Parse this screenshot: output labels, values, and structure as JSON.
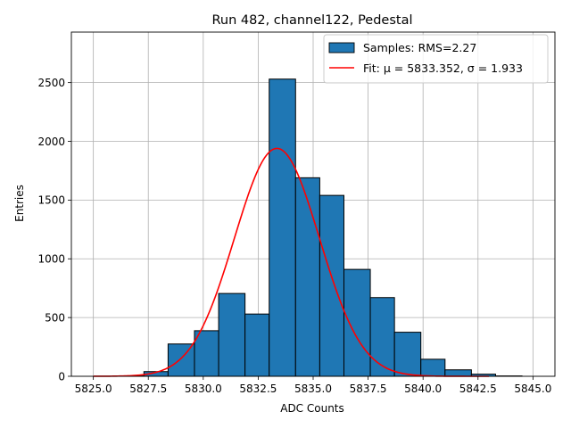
{
  "chart_data": {
    "type": "bar",
    "title": "Run 482, channel122, Pedestal",
    "xlabel": "ADC Counts",
    "ylabel": "Entries",
    "xlim": [
      5824.0,
      5846.0
    ],
    "ylim": [
      0,
      2930
    ],
    "grid": true,
    "legend_position": "top-right",
    "bar_color": "#1f77b4",
    "bar_edge_color": "#000000",
    "fit_color": "#ff0000",
    "x_ticks": [
      5825.0,
      5827.5,
      5830.0,
      5832.5,
      5835.0,
      5837.5,
      5840.0,
      5842.5,
      5845.0
    ],
    "x_tick_labels": [
      "5825.0",
      "5827.5",
      "5830.0",
      "5832.5",
      "5835.0",
      "5837.5",
      "5840.0",
      "5842.5",
      "5845.0"
    ],
    "y_ticks": [
      0,
      500,
      1000,
      1500,
      2000,
      2500
    ],
    "y_tick_labels": [
      "0",
      "500",
      "1000",
      "1500",
      "2000",
      "2500"
    ],
    "bins": [
      {
        "left": 5825.0,
        "right": 5826.1,
        "count": 0
      },
      {
        "left": 5826.1,
        "right": 5827.3,
        "count": 3
      },
      {
        "left": 5827.3,
        "right": 5828.4,
        "count": 40
      },
      {
        "left": 5828.4,
        "right": 5829.6,
        "count": 275
      },
      {
        "left": 5829.6,
        "right": 5830.7,
        "count": 388
      },
      {
        "left": 5830.7,
        "right": 5831.9,
        "count": 705
      },
      {
        "left": 5831.9,
        "right": 5833.0,
        "count": 530
      },
      {
        "left": 5833.0,
        "right": 5834.2,
        "count": 2530
      },
      {
        "left": 5834.2,
        "right": 5835.3,
        "count": 1690
      },
      {
        "left": 5835.3,
        "right": 5836.4,
        "count": 1540
      },
      {
        "left": 5836.4,
        "right": 5837.6,
        "count": 910
      },
      {
        "left": 5837.6,
        "right": 5838.7,
        "count": 670
      },
      {
        "left": 5838.7,
        "right": 5839.9,
        "count": 375
      },
      {
        "left": 5839.9,
        "right": 5841.0,
        "count": 145
      },
      {
        "left": 5841.0,
        "right": 5842.2,
        "count": 55
      },
      {
        "left": 5842.2,
        "right": 5843.3,
        "count": 18
      },
      {
        "left": 5843.3,
        "right": 5844.5,
        "count": 3
      }
    ],
    "fit": {
      "mu": 5833.352,
      "sigma": 1.933,
      "amplitude": 1940,
      "x_range": [
        5825.0,
        5843.0
      ]
    },
    "legend": {
      "entries": [
        "Samples: RMS=2.27",
        "Fit: μ = 5833.352, σ = 1.933"
      ]
    }
  }
}
